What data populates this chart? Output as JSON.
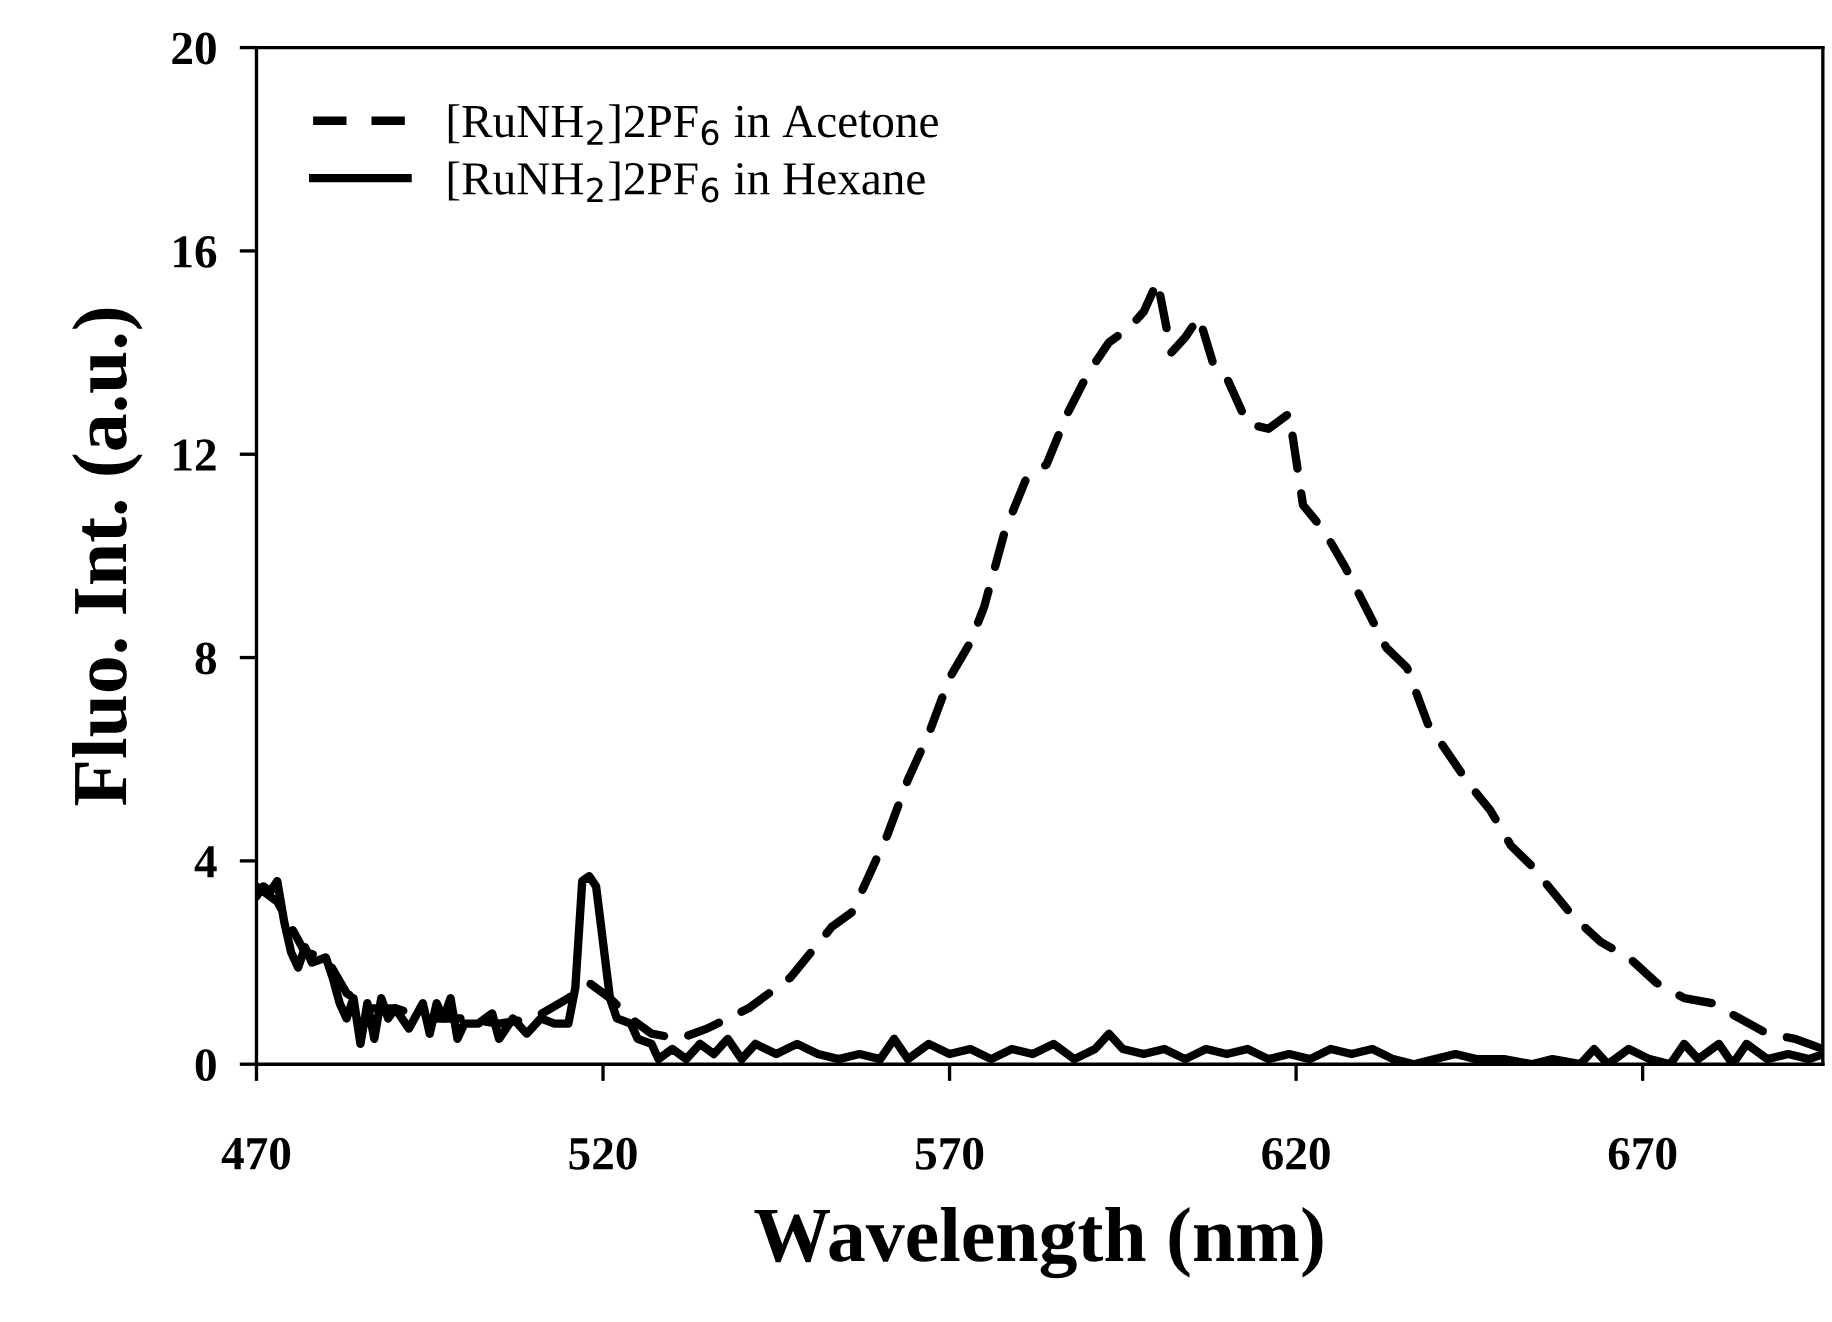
{
  "chart_data": {
    "type": "line",
    "xlabel": "Wavelength (nm)",
    "ylabel": "Fluo. Int. (a.u.)",
    "xlim": [
      470,
      696
    ],
    "ylim": [
      0,
      20
    ],
    "xticks": [
      470,
      520,
      570,
      620,
      670
    ],
    "yticks": [
      0,
      4,
      8,
      12,
      16,
      20
    ],
    "grid": false,
    "legend": "top left",
    "marker": "none",
    "series": [
      {
        "name": "[RuNH$_{2}$]2PF$_{6}$ in Acetone",
        "color": "#000000",
        "line_style": "dashed",
        "x": [
          470,
          473,
          475,
          477,
          480,
          483,
          486,
          490,
          495,
          500,
          505,
          510,
          515,
          518,
          521,
          524,
          527,
          531,
          535,
          538,
          541,
          544,
          547,
          550,
          553,
          556,
          558,
          561,
          564,
          567,
          570,
          573,
          575,
          578,
          581,
          584,
          587,
          590,
          593,
          596,
          598,
          600,
          602,
          604,
          606,
          608,
          610,
          613,
          616,
          619,
          621,
          624,
          627,
          630,
          633,
          636,
          639,
          642,
          645,
          648,
          651,
          654,
          657,
          660,
          664,
          668,
          672,
          676,
          680,
          684,
          688,
          692,
          696
        ],
        "values": [
          3.5,
          3.2,
          2.7,
          2.2,
          2.1,
          1.4,
          1.1,
          1.1,
          0.9,
          0.9,
          0.8,
          0.9,
          1.3,
          1.6,
          1.3,
          0.9,
          0.6,
          0.5,
          0.7,
          0.9,
          1.1,
          1.4,
          1.7,
          2.2,
          2.7,
          3.0,
          3.6,
          4.5,
          5.6,
          6.5,
          7.6,
          8.3,
          9.0,
          10.5,
          11.5,
          11.8,
          12.8,
          13.6,
          14.2,
          14.5,
          14.8,
          15.4,
          14.0,
          14.3,
          14.7,
          13.8,
          13.5,
          12.6,
          12.5,
          12.8,
          11.0,
          10.5,
          9.8,
          9.0,
          8.2,
          7.8,
          6.7,
          6.1,
          5.5,
          5.0,
          4.3,
          3.9,
          3.4,
          2.9,
          2.4,
          2.1,
          1.6,
          1.3,
          1.2,
          0.9,
          0.6,
          0.5,
          0.3
        ]
      },
      {
        "name": "[RuNH$_{2}$]2PF$_{6}$ in Hexane",
        "color": "#000000",
        "line_style": "solid",
        "x": [
          470,
          471,
          472,
          473,
          474,
          475,
          476,
          477,
          478,
          480,
          481,
          482,
          483,
          484,
          485,
          486,
          487,
          488,
          489,
          490,
          492,
          494,
          495,
          496,
          497,
          498,
          499,
          500,
          502,
          504,
          505,
          507,
          509,
          511,
          513,
          515,
          516,
          517,
          518,
          519,
          520,
          521,
          522,
          524,
          525,
          527,
          528,
          530,
          532,
          534,
          536,
          538,
          540,
          542,
          545,
          548,
          551,
          554,
          557,
          560,
          562,
          564,
          567,
          570,
          573,
          576,
          579,
          582,
          585,
          588,
          591,
          593,
          595,
          598,
          601,
          604,
          607,
          610,
          613,
          616,
          619,
          622,
          625,
          628,
          631,
          634,
          637,
          640,
          643,
          646,
          650,
          654,
          657,
          661,
          663,
          665,
          668,
          671,
          674,
          676,
          678,
          681,
          683,
          685,
          688,
          691,
          694,
          696
        ],
        "values": [
          3.3,
          3.5,
          3.4,
          3.6,
          2.8,
          2.2,
          1.9,
          2.3,
          2.0,
          2.1,
          1.7,
          1.2,
          0.9,
          1.3,
          0.4,
          1.2,
          0.5,
          1.3,
          0.9,
          1.1,
          0.7,
          1.2,
          0.6,
          1.2,
          0.9,
          1.3,
          0.5,
          0.8,
          0.8,
          1.0,
          0.5,
          0.9,
          0.6,
          0.9,
          0.8,
          0.8,
          1.5,
          3.6,
          3.7,
          3.5,
          2.4,
          1.3,
          0.9,
          0.8,
          0.5,
          0.4,
          0.1,
          0.3,
          0.1,
          0.4,
          0.2,
          0.5,
          0.1,
          0.4,
          0.2,
          0.4,
          0.2,
          0.1,
          0.2,
          0.1,
          0.5,
          0.1,
          0.4,
          0.2,
          0.3,
          0.1,
          0.3,
          0.2,
          0.4,
          0.1,
          0.3,
          0.6,
          0.3,
          0.2,
          0.3,
          0.1,
          0.3,
          0.2,
          0.3,
          0.1,
          0.2,
          0.1,
          0.3,
          0.2,
          0.3,
          0.1,
          0.0,
          0.1,
          0.2,
          0.1,
          0.1,
          0.0,
          0.1,
          0.0,
          0.3,
          0.0,
          0.3,
          0.1,
          0.0,
          0.4,
          0.1,
          0.4,
          0.0,
          0.4,
          0.1,
          0.2,
          0.1,
          0.2
        ]
      }
    ]
  }
}
